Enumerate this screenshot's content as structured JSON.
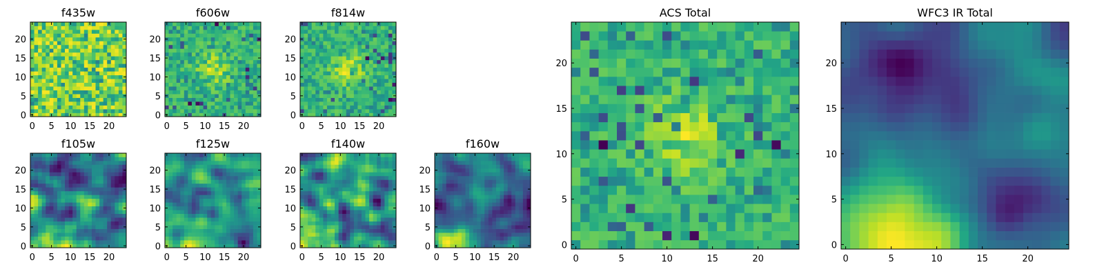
{
  "figure": {
    "background": "#ffffff",
    "colormap_name": "viridis"
  },
  "chart_data": [
    {
      "type": "heatmap",
      "title": "f435w",
      "rows": 25,
      "cols": 25,
      "xlim": [
        -0.5,
        24.5
      ],
      "ylim": [
        -0.5,
        24.5
      ],
      "xticks": [
        0,
        5,
        10,
        15,
        20
      ],
      "yticks": [
        0,
        5,
        10,
        15,
        20
      ],
      "character": "uniform-noise",
      "value_range": [
        0.25,
        1.0
      ]
    },
    {
      "type": "heatmap",
      "title": "f606w",
      "rows": 25,
      "cols": 25,
      "xlim": [
        -0.5,
        24.5
      ],
      "ylim": [
        -0.5,
        24.5
      ],
      "xticks": [
        0,
        5,
        10,
        15,
        20
      ],
      "yticks": [
        0,
        5,
        10,
        15,
        20
      ],
      "character": "noise-with-central-bright-source",
      "value_range": [
        0.0,
        1.0
      ]
    },
    {
      "type": "heatmap",
      "title": "f814w",
      "rows": 25,
      "cols": 25,
      "xlim": [
        -0.5,
        24.5
      ],
      "ylim": [
        -0.5,
        24.5
      ],
      "xticks": [
        0,
        5,
        10,
        15,
        20
      ],
      "yticks": [
        0,
        5,
        10,
        15,
        20
      ],
      "character": "noise-with-central-bright-source",
      "value_range": [
        0.0,
        1.0
      ]
    },
    {
      "type": "heatmap",
      "title": "f105w",
      "rows": 25,
      "cols": 25,
      "xlim": [
        -0.5,
        24.5
      ],
      "ylim": [
        -0.5,
        24.5
      ],
      "xticks": [
        0,
        5,
        10,
        15,
        20
      ],
      "yticks": [
        0,
        5,
        10,
        15,
        20
      ],
      "character": "smooth-correlated-noise",
      "value_range": [
        0.0,
        1.0
      ]
    },
    {
      "type": "heatmap",
      "title": "f125w",
      "rows": 25,
      "cols": 25,
      "xlim": [
        -0.5,
        24.5
      ],
      "ylim": [
        -0.5,
        24.5
      ],
      "xticks": [
        0,
        5,
        10,
        15,
        20
      ],
      "yticks": [
        0,
        5,
        10,
        15,
        20
      ],
      "character": "smooth-correlated-noise-bright",
      "value_range": [
        0.0,
        1.0
      ]
    },
    {
      "type": "heatmap",
      "title": "f140w",
      "rows": 25,
      "cols": 25,
      "xlim": [
        -0.5,
        24.5
      ],
      "ylim": [
        -0.5,
        24.5
      ],
      "xticks": [
        0,
        5,
        10,
        15,
        20
      ],
      "yticks": [
        0,
        5,
        10,
        15,
        20
      ],
      "character": "smooth-correlated-noise",
      "value_range": [
        0.0,
        1.0
      ]
    },
    {
      "type": "heatmap",
      "title": "f160w",
      "rows": 25,
      "cols": 25,
      "xlim": [
        -0.5,
        24.5
      ],
      "ylim": [
        -0.5,
        24.5
      ],
      "xticks": [
        0,
        5,
        10,
        15,
        20
      ],
      "yticks": [
        0,
        5,
        10,
        15,
        20
      ],
      "character": "smooth-correlated-noise-bright-bottom-left",
      "value_range": [
        0.0,
        1.0
      ]
    },
    {
      "type": "heatmap",
      "title": "ACS Total",
      "rows": 25,
      "cols": 25,
      "xlim": [
        -0.5,
        24.5
      ],
      "ylim": [
        -0.5,
        24.5
      ],
      "xticks": [
        0,
        5,
        10,
        15,
        20
      ],
      "yticks": [
        0,
        5,
        10,
        15,
        20
      ],
      "character": "noise-with-central-bright-source",
      "value_range": [
        0.0,
        1.0
      ]
    },
    {
      "type": "heatmap",
      "title": "WFC3 IR Total",
      "rows": 25,
      "cols": 25,
      "xlim": [
        -0.5,
        24.5
      ],
      "ylim": [
        -0.5,
        24.5
      ],
      "xticks": [
        0,
        5,
        10,
        15,
        20
      ],
      "yticks": [
        0,
        5,
        10,
        15,
        20
      ],
      "character": "smooth-field-bright-bottom-left-dark-top-left",
      "value_range": [
        0.0,
        1.0
      ]
    }
  ]
}
